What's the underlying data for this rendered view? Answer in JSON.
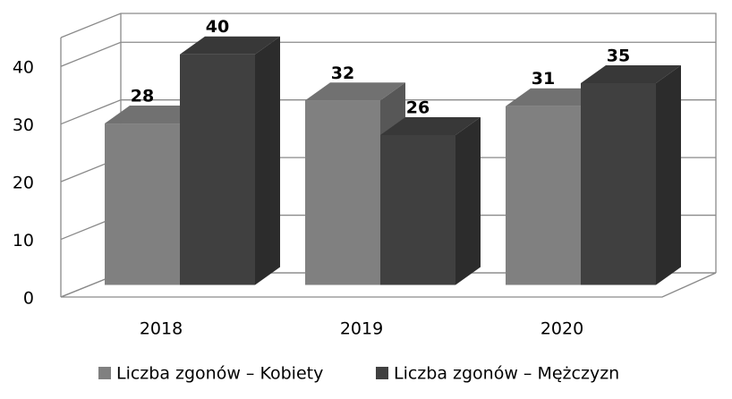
{
  "chart_data": {
    "type": "bar3d",
    "categories": [
      "2018",
      "2019",
      "2020"
    ],
    "series": [
      {
        "name": "Liczba zgonów – Kobiety",
        "color": "#808080",
        "values": [
          28,
          32,
          31
        ]
      },
      {
        "name": "Liczba zgonów – Mężczyzn",
        "color": "#404040",
        "values": [
          40,
          26,
          35
        ]
      }
    ],
    "ylim": [
      0,
      45
    ],
    "yticks": [
      0,
      10,
      20,
      30,
      40
    ],
    "grid": true,
    "legend": "bottom"
  }
}
